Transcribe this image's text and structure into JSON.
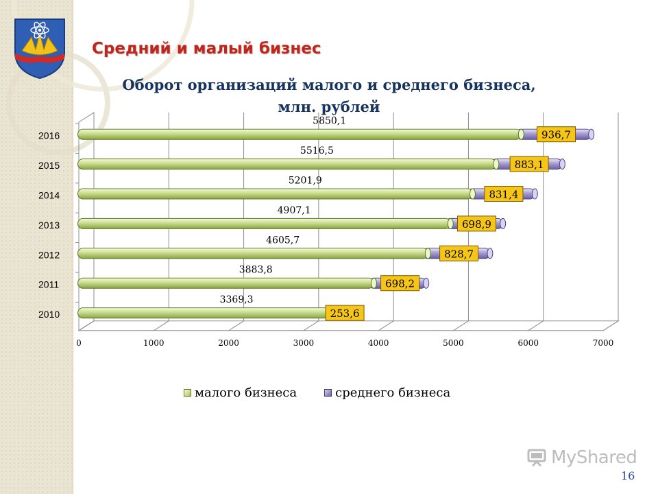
{
  "slide": {
    "title": "Средний и малый бизнес",
    "page_number": "16"
  },
  "branding": {
    "watermark_text": "MyShared"
  },
  "chart_data": {
    "type": "bar",
    "orientation": "horizontal",
    "style": "3d-cylinder",
    "title": "Оборот организаций малого и среднего бизнеса, млн. рублей",
    "categories": [
      "2010",
      "2011",
      "2012",
      "2013",
      "2014",
      "2015",
      "2016"
    ],
    "series": [
      {
        "name": "малого бизнеса",
        "values": [
          3369.3,
          3883.8,
          4605.7,
          4907.1,
          5201.9,
          5516.5,
          5850.1
        ],
        "labels": [
          "3369,3",
          "3883,8",
          "4605,7",
          "4907,1",
          "5201,9",
          "5516,5",
          "5850,1"
        ],
        "color": "#c9dc8c"
      },
      {
        "name": "среднего бизнеса",
        "values": [
          253.6,
          698.2,
          828.7,
          698.9,
          831.4,
          883.1,
          936.7
        ],
        "labels": [
          "253,6",
          "698,2",
          "828,7",
          "698,9",
          "831,4",
          "883,1",
          "936,7"
        ],
        "color": "#a69ccf"
      }
    ],
    "stacked": true,
    "xlim": [
      0,
      7000
    ],
    "xticks": [
      0,
      1000,
      2000,
      3000,
      4000,
      5000,
      6000,
      7000
    ],
    "grid": true,
    "legend_position": "bottom",
    "data_label_box_color": "#f5c518"
  }
}
